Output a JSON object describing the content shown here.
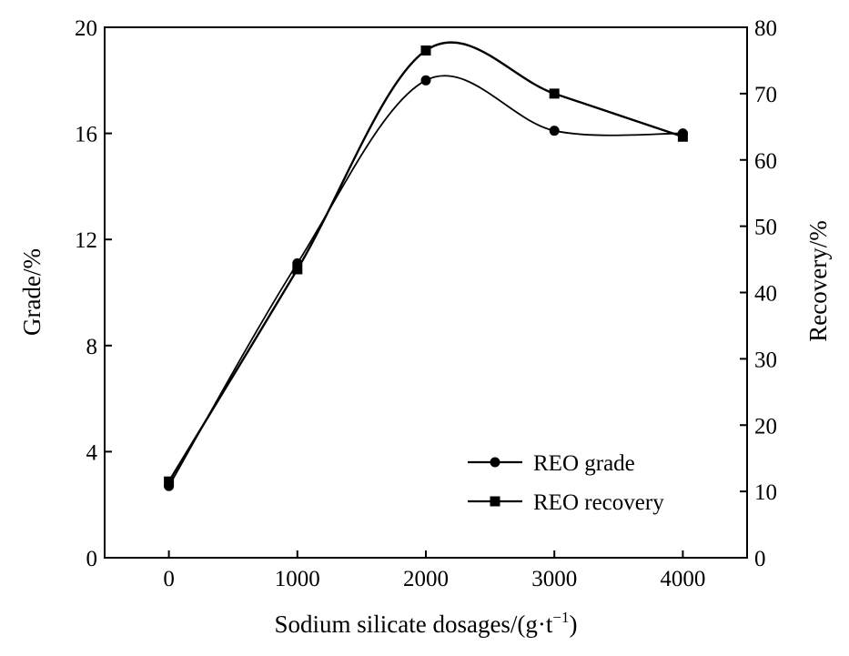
{
  "chart_data": {
    "type": "line",
    "x": [
      0,
      1000,
      2000,
      3000,
      4000
    ],
    "xlim": [
      -500,
      4500
    ],
    "x_ticks": [
      0,
      1000,
      2000,
      3000,
      4000
    ],
    "xlabel": "Sodium silicate dosages/(g·t",
    "xlabel_sup": "−1",
    "xlabel_suffix": ")",
    "y_left": {
      "label": "Grade/%",
      "lim": [
        0,
        20
      ],
      "ticks": [
        0,
        4,
        8,
        12,
        16,
        20
      ]
    },
    "y_right": {
      "label": "Recovery/%",
      "lim": [
        0,
        80
      ],
      "ticks": [
        0,
        10,
        20,
        30,
        40,
        50,
        60,
        70,
        80
      ]
    },
    "series": [
      {
        "name": "REO grade",
        "axis": "left",
        "marker": "circle",
        "values": [
          2.7,
          11.1,
          18.0,
          16.1,
          16.0
        ]
      },
      {
        "name": "REO recovery",
        "axis": "right",
        "marker": "square",
        "values": [
          11.5,
          43.5,
          76.5,
          70.0,
          63.5
        ]
      }
    ],
    "legend_position": "lower-right",
    "grid": false,
    "line_color": "#000000"
  }
}
